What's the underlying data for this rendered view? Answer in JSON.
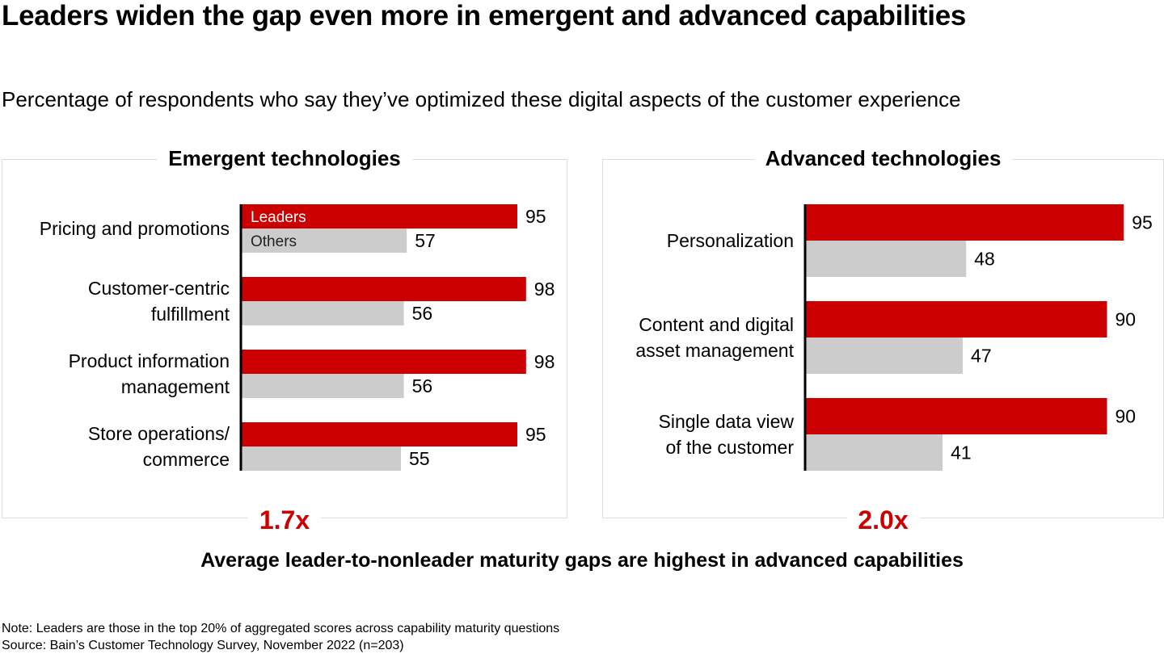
{
  "title": "Leaders widen the gap even more in emergent and advanced capabilities",
  "subtitle": "Percentage of respondents who say they’ve optimized these digital aspects of the customer experience",
  "colors": {
    "leaders": "#cc0000",
    "others": "#cccccc",
    "multiplier": "#cc0000"
  },
  "chart_data": [
    {
      "type": "bar",
      "orientation": "horizontal",
      "title": "Emergent technologies",
      "categories": [
        "Pricing and promotions",
        "Customer-centric fulfillment",
        "Product information management",
        "Store operations/ commerce"
      ],
      "series": [
        {
          "name": "Leaders",
          "values": [
            95,
            98,
            98,
            95
          ]
        },
        {
          "name": "Others",
          "values": [
            57,
            56,
            56,
            55
          ]
        }
      ],
      "legend": "inside first bars",
      "xlim": [
        0,
        100
      ],
      "annotation": "1.7x"
    },
    {
      "type": "bar",
      "orientation": "horizontal",
      "title": "Advanced technologies",
      "categories": [
        "Personalization",
        "Content and digital asset management",
        "Single data view of the customer"
      ],
      "series": [
        {
          "name": "Leaders",
          "values": [
            95,
            90,
            90
          ]
        },
        {
          "name": "Others",
          "values": [
            48,
            47,
            41
          ]
        }
      ],
      "xlim": [
        0,
        100
      ],
      "annotation": "2.0x"
    }
  ],
  "footer_takeaway": "Average leader-to-nonleader maturity gaps are highest in advanced capabilities",
  "note": "Note: Leaders are those in the top 20% of aggregated scores across capability maturity questions",
  "source": "Source: Bain’s Customer Technology Survey, November 2022 (n=203)"
}
